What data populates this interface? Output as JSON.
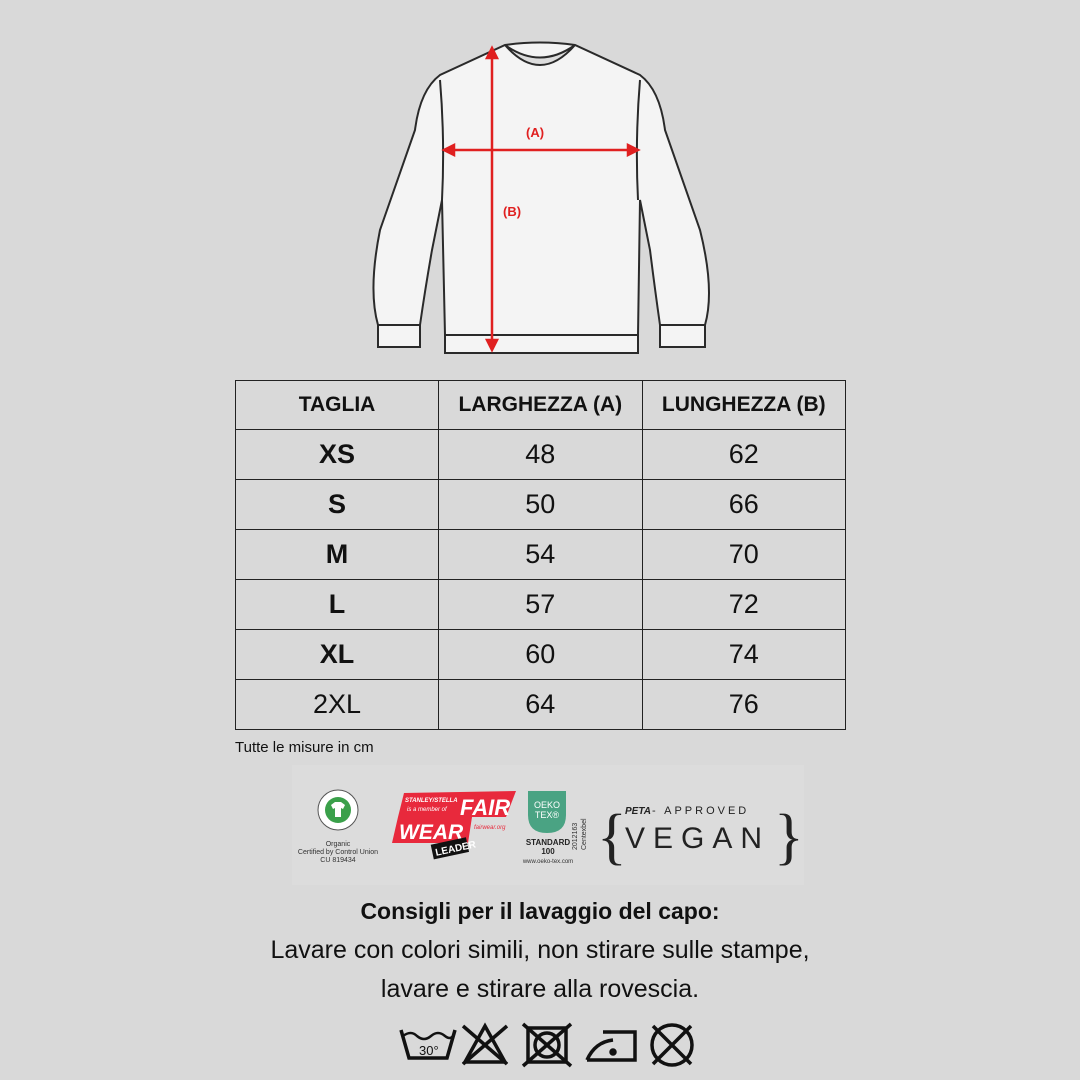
{
  "diagram": {
    "label_a": "(A)",
    "label_b": "(B)",
    "accent": "#e02020"
  },
  "table": {
    "headers": [
      "TAGLIA",
      "LARGHEZZA (A)",
      "LUNGHEZZA (B)"
    ],
    "rows": [
      [
        "XS",
        "48",
        "62"
      ],
      [
        "S",
        "50",
        "66"
      ],
      [
        "M",
        "54",
        "70"
      ],
      [
        "L",
        "57",
        "72"
      ],
      [
        "XL",
        "60",
        "74"
      ],
      [
        "2XL",
        "64",
        "76"
      ]
    ]
  },
  "note": "Tutte le misure in cm",
  "logos": {
    "gots": {
      "ring": "GLOBAL ORGANIC TEXTILE STANDARD",
      "line1": "Organic",
      "line2": "Certified by Control Union",
      "line3": "CU 819434"
    },
    "fairwear": {
      "small1": "STANLEY/STELLA",
      "small2": "is a member of",
      "fair": "FAIR",
      "wear": "WEAR",
      "site": "fairwear.org",
      "leader": "LEADER"
    },
    "oekotex": {
      "logo1": "OEKO",
      "logo2": "TEX®",
      "standard": "STANDARD",
      "num": "100",
      "code": "2012163",
      "inst": "Centexbel",
      "site": "www.oeko-tex.com"
    },
    "peta": {
      "peta": "PETA",
      "approved": "- APPROVED",
      "vegan": "VEGAN"
    }
  },
  "care": {
    "title": "Consigli per il lavaggio del capo:",
    "line1": "Lavare con colori simili, non stirare sulle stampe,",
    "line2": "lavare e stirare alla rovescia."
  },
  "care_icons": [
    "wash-30-icon",
    "no-bleach-icon",
    "no-tumble-dry-icon",
    "iron-low-icon",
    "no-dry-clean-icon"
  ],
  "wash_temp": "30°"
}
